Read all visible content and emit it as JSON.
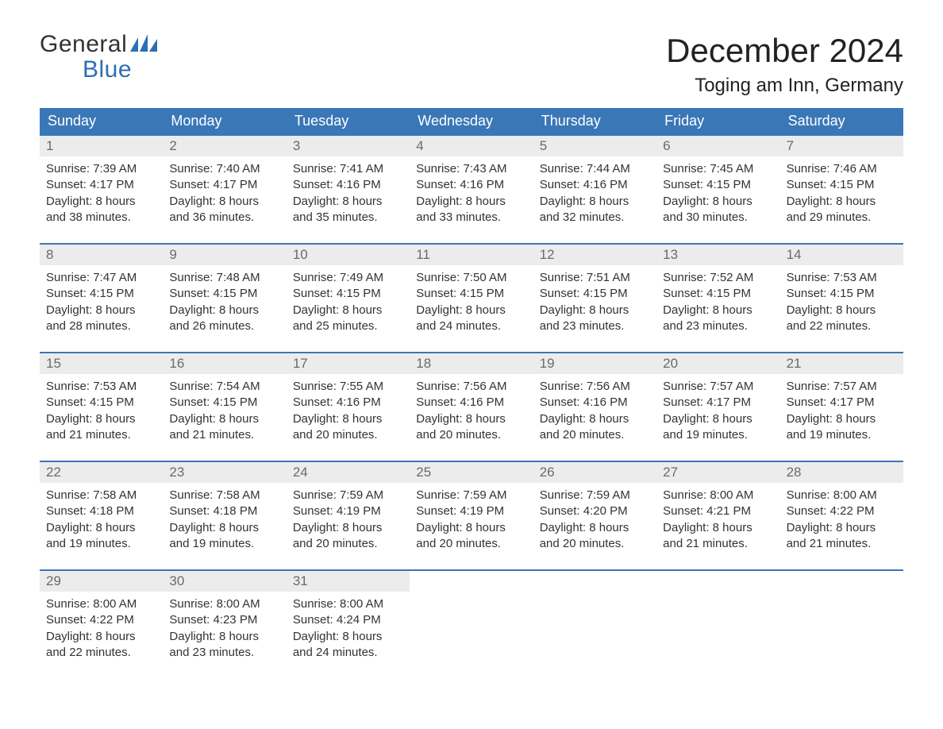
{
  "colors": {
    "header_bg": "#3a77b7",
    "header_text": "#ffffff",
    "daynum_bg": "#ececec",
    "daynum_text": "#6a6a6a",
    "body_text": "#333333",
    "logo_blue": "#2b6fb3",
    "week_border": "#3a77b7",
    "page_bg": "#ffffff"
  },
  "logo": {
    "line1": "General",
    "line2": "Blue"
  },
  "header": {
    "month_title": "December 2024",
    "location": "Toging am Inn, Germany"
  },
  "days_of_week": [
    "Sunday",
    "Monday",
    "Tuesday",
    "Wednesday",
    "Thursday",
    "Friday",
    "Saturday"
  ],
  "weeks": [
    [
      {
        "num": "1",
        "sunrise": "Sunrise: 7:39 AM",
        "sunset": "Sunset: 4:17 PM",
        "daylight1": "Daylight: 8 hours",
        "daylight2": "and 38 minutes."
      },
      {
        "num": "2",
        "sunrise": "Sunrise: 7:40 AM",
        "sunset": "Sunset: 4:17 PM",
        "daylight1": "Daylight: 8 hours",
        "daylight2": "and 36 minutes."
      },
      {
        "num": "3",
        "sunrise": "Sunrise: 7:41 AM",
        "sunset": "Sunset: 4:16 PM",
        "daylight1": "Daylight: 8 hours",
        "daylight2": "and 35 minutes."
      },
      {
        "num": "4",
        "sunrise": "Sunrise: 7:43 AM",
        "sunset": "Sunset: 4:16 PM",
        "daylight1": "Daylight: 8 hours",
        "daylight2": "and 33 minutes."
      },
      {
        "num": "5",
        "sunrise": "Sunrise: 7:44 AM",
        "sunset": "Sunset: 4:16 PM",
        "daylight1": "Daylight: 8 hours",
        "daylight2": "and 32 minutes."
      },
      {
        "num": "6",
        "sunrise": "Sunrise: 7:45 AM",
        "sunset": "Sunset: 4:15 PM",
        "daylight1": "Daylight: 8 hours",
        "daylight2": "and 30 minutes."
      },
      {
        "num": "7",
        "sunrise": "Sunrise: 7:46 AM",
        "sunset": "Sunset: 4:15 PM",
        "daylight1": "Daylight: 8 hours",
        "daylight2": "and 29 minutes."
      }
    ],
    [
      {
        "num": "8",
        "sunrise": "Sunrise: 7:47 AM",
        "sunset": "Sunset: 4:15 PM",
        "daylight1": "Daylight: 8 hours",
        "daylight2": "and 28 minutes."
      },
      {
        "num": "9",
        "sunrise": "Sunrise: 7:48 AM",
        "sunset": "Sunset: 4:15 PM",
        "daylight1": "Daylight: 8 hours",
        "daylight2": "and 26 minutes."
      },
      {
        "num": "10",
        "sunrise": "Sunrise: 7:49 AM",
        "sunset": "Sunset: 4:15 PM",
        "daylight1": "Daylight: 8 hours",
        "daylight2": "and 25 minutes."
      },
      {
        "num": "11",
        "sunrise": "Sunrise: 7:50 AM",
        "sunset": "Sunset: 4:15 PM",
        "daylight1": "Daylight: 8 hours",
        "daylight2": "and 24 minutes."
      },
      {
        "num": "12",
        "sunrise": "Sunrise: 7:51 AM",
        "sunset": "Sunset: 4:15 PM",
        "daylight1": "Daylight: 8 hours",
        "daylight2": "and 23 minutes."
      },
      {
        "num": "13",
        "sunrise": "Sunrise: 7:52 AM",
        "sunset": "Sunset: 4:15 PM",
        "daylight1": "Daylight: 8 hours",
        "daylight2": "and 23 minutes."
      },
      {
        "num": "14",
        "sunrise": "Sunrise: 7:53 AM",
        "sunset": "Sunset: 4:15 PM",
        "daylight1": "Daylight: 8 hours",
        "daylight2": "and 22 minutes."
      }
    ],
    [
      {
        "num": "15",
        "sunrise": "Sunrise: 7:53 AM",
        "sunset": "Sunset: 4:15 PM",
        "daylight1": "Daylight: 8 hours",
        "daylight2": "and 21 minutes."
      },
      {
        "num": "16",
        "sunrise": "Sunrise: 7:54 AM",
        "sunset": "Sunset: 4:15 PM",
        "daylight1": "Daylight: 8 hours",
        "daylight2": "and 21 minutes."
      },
      {
        "num": "17",
        "sunrise": "Sunrise: 7:55 AM",
        "sunset": "Sunset: 4:16 PM",
        "daylight1": "Daylight: 8 hours",
        "daylight2": "and 20 minutes."
      },
      {
        "num": "18",
        "sunrise": "Sunrise: 7:56 AM",
        "sunset": "Sunset: 4:16 PM",
        "daylight1": "Daylight: 8 hours",
        "daylight2": "and 20 minutes."
      },
      {
        "num": "19",
        "sunrise": "Sunrise: 7:56 AM",
        "sunset": "Sunset: 4:16 PM",
        "daylight1": "Daylight: 8 hours",
        "daylight2": "and 20 minutes."
      },
      {
        "num": "20",
        "sunrise": "Sunrise: 7:57 AM",
        "sunset": "Sunset: 4:17 PM",
        "daylight1": "Daylight: 8 hours",
        "daylight2": "and 19 minutes."
      },
      {
        "num": "21",
        "sunrise": "Sunrise: 7:57 AM",
        "sunset": "Sunset: 4:17 PM",
        "daylight1": "Daylight: 8 hours",
        "daylight2": "and 19 minutes."
      }
    ],
    [
      {
        "num": "22",
        "sunrise": "Sunrise: 7:58 AM",
        "sunset": "Sunset: 4:18 PM",
        "daylight1": "Daylight: 8 hours",
        "daylight2": "and 19 minutes."
      },
      {
        "num": "23",
        "sunrise": "Sunrise: 7:58 AM",
        "sunset": "Sunset: 4:18 PM",
        "daylight1": "Daylight: 8 hours",
        "daylight2": "and 19 minutes."
      },
      {
        "num": "24",
        "sunrise": "Sunrise: 7:59 AM",
        "sunset": "Sunset: 4:19 PM",
        "daylight1": "Daylight: 8 hours",
        "daylight2": "and 20 minutes."
      },
      {
        "num": "25",
        "sunrise": "Sunrise: 7:59 AM",
        "sunset": "Sunset: 4:19 PM",
        "daylight1": "Daylight: 8 hours",
        "daylight2": "and 20 minutes."
      },
      {
        "num": "26",
        "sunrise": "Sunrise: 7:59 AM",
        "sunset": "Sunset: 4:20 PM",
        "daylight1": "Daylight: 8 hours",
        "daylight2": "and 20 minutes."
      },
      {
        "num": "27",
        "sunrise": "Sunrise: 8:00 AM",
        "sunset": "Sunset: 4:21 PM",
        "daylight1": "Daylight: 8 hours",
        "daylight2": "and 21 minutes."
      },
      {
        "num": "28",
        "sunrise": "Sunrise: 8:00 AM",
        "sunset": "Sunset: 4:22 PM",
        "daylight1": "Daylight: 8 hours",
        "daylight2": "and 21 minutes."
      }
    ],
    [
      {
        "num": "29",
        "sunrise": "Sunrise: 8:00 AM",
        "sunset": "Sunset: 4:22 PM",
        "daylight1": "Daylight: 8 hours",
        "daylight2": "and 22 minutes."
      },
      {
        "num": "30",
        "sunrise": "Sunrise: 8:00 AM",
        "sunset": "Sunset: 4:23 PM",
        "daylight1": "Daylight: 8 hours",
        "daylight2": "and 23 minutes."
      },
      {
        "num": "31",
        "sunrise": "Sunrise: 8:00 AM",
        "sunset": "Sunset: 4:24 PM",
        "daylight1": "Daylight: 8 hours",
        "daylight2": "and 24 minutes."
      },
      {
        "empty": true
      },
      {
        "empty": true
      },
      {
        "empty": true
      },
      {
        "empty": true
      }
    ]
  ]
}
